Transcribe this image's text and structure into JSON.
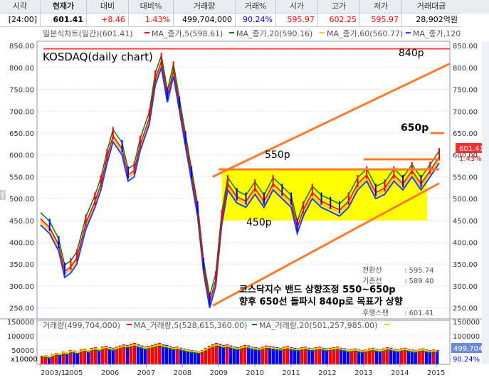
{
  "header": {
    "labels": [
      "시각",
      "현재가",
      "대비",
      "대비%",
      "거래량",
      "거래%",
      "시가",
      "고가",
      "저가",
      "거래대금"
    ],
    "values": [
      "[24:00]",
      "601.41",
      "+8.46",
      "1.43%",
      "499,704,000",
      "90.24%",
      "595.97",
      "602.25",
      "595.97",
      "28,902억원"
    ],
    "value_colors": [
      "#000000",
      "#000000",
      "#ff0000",
      "#ff0000",
      "#000000",
      "#0000ff",
      "#ff0000",
      "#ff0000",
      "#ff0000",
      "#000000"
    ]
  },
  "price_legend": {
    "main": "일본식차트(일간)(601.41)",
    "ma5": "MA_종가,5(598.61)",
    "ma20": "MA_종가,20(590.16)",
    "ma60": "MA_종가,60(560.77)",
    "ma120": "MA_종가,120"
  },
  "chart_title": "KOSDAQ(daily chart)",
  "annotations": {
    "p840": "840p",
    "p650": "650p",
    "p550": "550p",
    "p450": "450p",
    "note1": "코스닥지수 밴드 상향조정 550~650p",
    "note2": "향후 650선 돌파시 840p로 목표가 상향"
  },
  "info_box": [
    {
      "label": "전환선",
      "value": ": 595.74"
    },
    {
      "label": "기준선",
      "value": ": 589.40"
    },
    {
      "label": "후행스팬",
      "value": ": 601.41"
    }
  ],
  "price_tags": {
    "last": "601.41",
    "pct": "1.43%"
  },
  "volume_legend": {
    "main": "거래량(499,704,000)",
    "ma5": "MA_거래량,5(528,615,360.00)",
    "ma20": "MA_거래량,20(501,257,985.00)"
  },
  "volume_tags": {
    "last": "499,704K",
    "pct": "90.24%"
  },
  "volume_unit": "x10000",
  "colors": {
    "up": "#ff0000",
    "down": "#0000ff",
    "ma5": "#ff0000",
    "ma20": "#008000",
    "ma60": "#ffcc00",
    "ma120": "#1f3fff",
    "band": "#ff7a2a",
    "box": "#ffff00",
    "line840": "#ff4040"
  },
  "chart_data": {
    "type": "line",
    "title": "KOSDAQ(daily chart)",
    "price_axis": {
      "ylim": [
        225,
        860
      ],
      "ticks": [
        250,
        300,
        350,
        400,
        450,
        500,
        550,
        600,
        650,
        700,
        750,
        800,
        850
      ]
    },
    "volume_axis": {
      "ylim": [
        0,
        155000
      ],
      "ticks": [
        "100000",
        "150000",
        "50000"
      ],
      "tick_values": [
        100000,
        150000,
        50000
      ]
    },
    "x_ticks": [
      "2003/11",
      "2005",
      "2006",
      "2007",
      "2008",
      "2009",
      "2010",
      "2011",
      "2012",
      "2013",
      "2014",
      "2015"
    ],
    "x_tick_index": [
      0,
      11,
      23,
      35,
      47,
      59,
      71,
      83,
      95,
      107,
      119,
      131
    ],
    "price_series": [
      {
        "index": 0,
        "value": 460
      },
      {
        "index": 3,
        "value": 440
      },
      {
        "index": 6,
        "value": 400
      },
      {
        "index": 8,
        "value": 340
      },
      {
        "index": 10,
        "value": 350
      },
      {
        "index": 12,
        "value": 370
      },
      {
        "index": 15,
        "value": 450
      },
      {
        "index": 18,
        "value": 500
      },
      {
        "index": 20,
        "value": 540
      },
      {
        "index": 22,
        "value": 600
      },
      {
        "index": 24,
        "value": 650
      },
      {
        "index": 27,
        "value": 620
      },
      {
        "index": 29,
        "value": 560
      },
      {
        "index": 31,
        "value": 570
      },
      {
        "index": 33,
        "value": 630
      },
      {
        "index": 36,
        "value": 690
      },
      {
        "index": 38,
        "value": 780
      },
      {
        "index": 40,
        "value": 820
      },
      {
        "index": 42,
        "value": 740
      },
      {
        "index": 44,
        "value": 800
      },
      {
        "index": 46,
        "value": 720
      },
      {
        "index": 48,
        "value": 640
      },
      {
        "index": 50,
        "value": 560
      },
      {
        "index": 52,
        "value": 480
      },
      {
        "index": 54,
        "value": 350
      },
      {
        "index": 56,
        "value": 270
      },
      {
        "index": 58,
        "value": 320
      },
      {
        "index": 60,
        "value": 460
      },
      {
        "index": 62,
        "value": 540
      },
      {
        "index": 65,
        "value": 510
      },
      {
        "index": 68,
        "value": 500
      },
      {
        "index": 71,
        "value": 530
      },
      {
        "index": 74,
        "value": 500
      },
      {
        "index": 77,
        "value": 540
      },
      {
        "index": 80,
        "value": 520
      },
      {
        "index": 83,
        "value": 500
      },
      {
        "index": 85,
        "value": 440
      },
      {
        "index": 87,
        "value": 480
      },
      {
        "index": 90,
        "value": 520
      },
      {
        "index": 93,
        "value": 500
      },
      {
        "index": 96,
        "value": 490
      },
      {
        "index": 99,
        "value": 480
      },
      {
        "index": 102,
        "value": 500
      },
      {
        "index": 105,
        "value": 540
      },
      {
        "index": 108,
        "value": 560
      },
      {
        "index": 111,
        "value": 520
      },
      {
        "index": 114,
        "value": 530
      },
      {
        "index": 117,
        "value": 560
      },
      {
        "index": 120,
        "value": 540
      },
      {
        "index": 123,
        "value": 570
      },
      {
        "index": 126,
        "value": 540
      },
      {
        "index": 129,
        "value": 570
      },
      {
        "index": 132,
        "value": 601.41
      }
    ],
    "band": {
      "upper": [
        {
          "index": 57,
          "value": 550
        },
        {
          "index": 145,
          "value": 840
        }
      ],
      "lower": [
        {
          "index": 57,
          "value": 255
        },
        {
          "index": 132,
          "value": 535
        }
      ],
      "resistance_550": [
        {
          "index": 59,
          "value": 567
        },
        {
          "index": 132,
          "value": 567
        }
      ],
      "resistance_590": [
        {
          "index": 107,
          "value": 590
        },
        {
          "index": 132,
          "value": 590
        }
      ],
      "level_840": [
        {
          "index": 1,
          "value": 843
        },
        {
          "index": 145,
          "value": 843
        }
      ],
      "box": {
        "x": [
          60,
          128
        ],
        "y": [
          450,
          567
        ]
      }
    },
    "volume_series": [
      30000,
      32000,
      28000,
      35000,
      40000,
      38000,
      45000,
      42000,
      50000,
      48000,
      45000,
      52000,
      55000,
      50000,
      58000,
      60000,
      55000,
      62000,
      65000,
      60000,
      58000,
      62000,
      66000,
      70000,
      68000,
      72000,
      75000,
      70000,
      66000,
      62000,
      65000,
      68000,
      72000,
      75000,
      70000,
      68000,
      64000,
      60000,
      62000,
      58000,
      55000,
      52000,
      50000,
      48000,
      46000,
      50000,
      58000,
      65000,
      70000,
      75000,
      72000,
      68000,
      70000,
      66000,
      62000,
      60000,
      64000,
      68000,
      66000,
      62000,
      60000,
      58000,
      62000,
      66000,
      64000,
      62000,
      60000,
      58000,
      62000,
      64000,
      60000,
      58000,
      56000,
      60000,
      62000,
      58000,
      56000,
      60000,
      62000,
      58000,
      56000,
      58000,
      60000,
      62000,
      58000,
      56000,
      52000,
      54000,
      56000,
      52000,
      50000,
      52000,
      56000,
      58000,
      54000,
      52000,
      56000,
      60000,
      58000,
      54000,
      52000,
      56000,
      58000,
      54000,
      52000,
      50000,
      54000,
      56000,
      52000,
      50000,
      52000,
      50000
    ]
  }
}
